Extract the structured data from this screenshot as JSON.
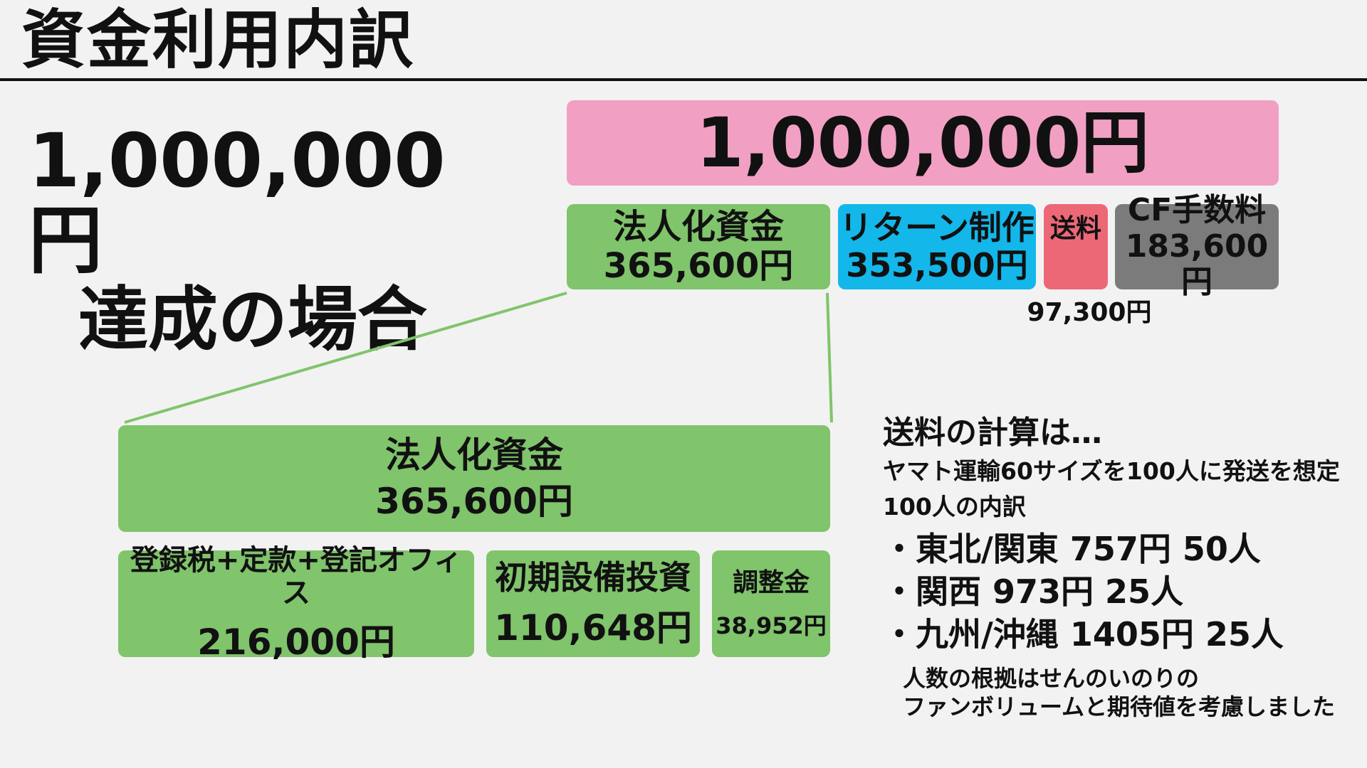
{
  "title": "資金利用内訳",
  "goal": {
    "amount": "1,000,000円",
    "caption": "達成の場合"
  },
  "total_bar": {
    "value": "1,000,000円"
  },
  "segments": [
    {
      "label": "法人化資金",
      "value": "365,600円"
    },
    {
      "label": "リターン制作",
      "value": "353,500円"
    },
    {
      "label": "送料",
      "value": "97,300円"
    },
    {
      "label": "CF手数料",
      "value": "183,600円"
    }
  ],
  "detail": {
    "label": "法人化資金",
    "value": "365,600円",
    "items": [
      {
        "label": "登録税+定款+登記オフィス",
        "value": "216,000円"
      },
      {
        "label": "初期設備投資",
        "value": "110,648円"
      },
      {
        "label": "調整金",
        "value": "38,952円"
      }
    ]
  },
  "notes": {
    "heading": "送料の計算は…",
    "line1": "ヤマト運輸60サイズを100人に発送を想定",
    "line2": "100人の内訳",
    "items": [
      "東北/関東 757円 50人",
      "関西 973円 25人",
      "九州/沖縄 1405円 25人"
    ],
    "basis1": "人数の根拠はせんのいのりの",
    "basis2": "ファンボリュームと期待値を考慮しました"
  },
  "colors": {
    "total": "#f1a0c3",
    "legal": "#80c46c",
    "returns": "#13b7ea",
    "shipping": "#ec6877",
    "fees": "#7b7b7b",
    "connector": "#80c46c"
  }
}
